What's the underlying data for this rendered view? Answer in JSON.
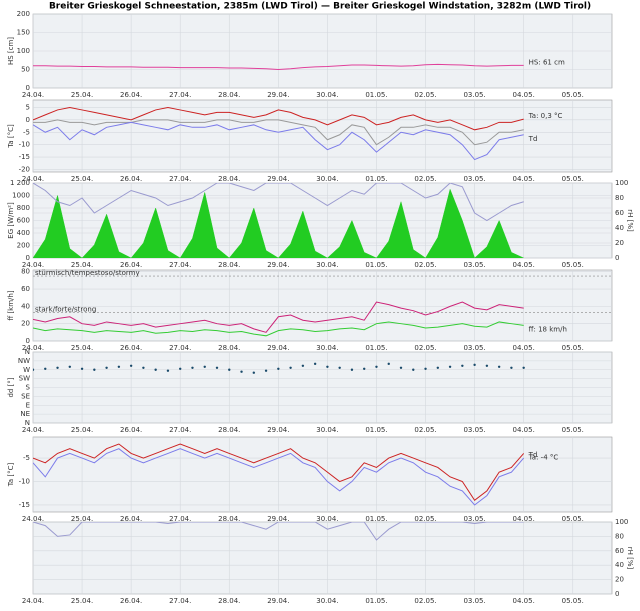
{
  "title": "Breiter Grieskogel Schneestation, 2385m (LWD Tirol) — Breiter Grieskogel Windstation, 3282m (LWD Tirol)",
  "time_axis": {
    "xlim": [
      0,
      11.8
    ],
    "xticks": [
      {
        "value": 0,
        "label": "24.04."
      },
      {
        "value": 1,
        "label": "25.04."
      },
      {
        "value": 2,
        "label": "26.04."
      },
      {
        "value": 3,
        "label": "27.04."
      },
      {
        "value": 4,
        "label": "28.04."
      },
      {
        "value": 5,
        "label": "29.04."
      },
      {
        "value": 6,
        "label": "30.04."
      },
      {
        "value": 7,
        "label": "01.05."
      },
      {
        "value": 8,
        "label": "02.05."
      },
      {
        "value": 9,
        "label": "03.05."
      },
      {
        "value": 10,
        "label": "04.05."
      },
      {
        "value": 11,
        "label": "05.05."
      }
    ],
    "x": [
      0,
      0.25,
      0.5,
      0.75,
      1,
      1.25,
      1.5,
      1.75,
      2,
      2.25,
      2.5,
      2.75,
      3,
      3.25,
      3.5,
      3.75,
      4,
      4.25,
      4.5,
      4.75,
      5,
      5.25,
      5.5,
      5.75,
      6,
      6.25,
      6.5,
      6.75,
      7,
      7.25,
      7.5,
      7.75,
      8,
      8.25,
      8.5,
      8.75,
      9,
      9.25,
      9.5,
      9.75,
      10
    ]
  },
  "chart_data": [
    {
      "type": "line",
      "ylabel": "HS [cm]",
      "ylabel_color": "#d63384",
      "ylim": [
        0,
        200
      ],
      "yticks": [
        0,
        50,
        100,
        150,
        200
      ],
      "grid": true,
      "series": [
        {
          "name": "HS: 61 cm",
          "color": "#e0409a",
          "kind": "line",
          "values": [
            60,
            60,
            59,
            59,
            58,
            58,
            57,
            57,
            57,
            56,
            56,
            56,
            55,
            55,
            55,
            55,
            54,
            54,
            53,
            52,
            50,
            52,
            55,
            57,
            58,
            60,
            62,
            62,
            61,
            60,
            59,
            60,
            63,
            64,
            63,
            62,
            60,
            59,
            60,
            61,
            61
          ]
        }
      ]
    },
    {
      "type": "line",
      "ylabel": "Ta [°C]",
      "ylabel_color": "#c0392b",
      "ylim": [
        -21,
        8
      ],
      "yticks": [
        5,
        0,
        -5,
        -10,
        -15,
        -20
      ],
      "grid": true,
      "series": [
        {
          "color": "#999999",
          "kind": "line",
          "values": [
            -1,
            -1,
            0,
            -1,
            -1,
            -2,
            -1,
            -1,
            -1,
            0,
            0,
            0,
            -1,
            -1,
            -1,
            0,
            0,
            -1,
            -1,
            0,
            0,
            -1,
            -2,
            -3,
            -8,
            -6,
            -2,
            -3,
            -10,
            -7,
            -3,
            -3,
            -2,
            -3,
            -3,
            -5,
            -10,
            -9,
            -5,
            -5,
            -4
          ]
        },
        {
          "name": "Td",
          "color": "#7b7bea",
          "kind": "line",
          "values": [
            -2,
            -5,
            -3,
            -8,
            -4,
            -6,
            -3,
            -2,
            -1,
            -2,
            -3,
            -4,
            -2,
            -3,
            -3,
            -2,
            -4,
            -3,
            -2,
            -4,
            -5,
            -4,
            -3,
            -8,
            -12,
            -10,
            -5,
            -8,
            -13,
            -9,
            -5,
            -6,
            -4,
            -5,
            -6,
            -10,
            -16,
            -14,
            -8,
            -7,
            -6
          ]
        },
        {
          "name": "Ta: 0,3 °C",
          "color": "#cc2222",
          "kind": "line",
          "values": [
            0,
            2,
            4,
            5,
            4,
            3,
            2,
            1,
            0,
            2,
            4,
            5,
            4,
            3,
            2,
            3,
            3,
            2,
            1,
            2,
            4,
            3,
            1,
            0,
            -2,
            0,
            2,
            1,
            -2,
            -1,
            1,
            2,
            0,
            -1,
            0,
            -2,
            -4,
            -3,
            -1,
            -1,
            0.3
          ]
        }
      ]
    },
    {
      "type": "combo",
      "ylabel": "EG [W/m²]",
      "ylabel_color": "#2e9e2e",
      "y2label": "rH [%]",
      "y2label_color": "#9a9acf",
      "ylim": [
        0,
        1200
      ],
      "yticks": [
        0,
        200,
        400,
        600,
        800,
        1000,
        {
          "value": 1200,
          "label": "1 200"
        }
      ],
      "y2lim": [
        0,
        100
      ],
      "y2ticks": [
        0,
        20,
        40,
        60,
        80,
        100
      ],
      "grid": true,
      "series": [
        {
          "color": "#22cc22",
          "kind": "area",
          "values": [
            0,
            300,
            1000,
            150,
            0,
            210,
            700,
            100,
            0,
            240,
            800,
            120,
            0,
            315,
            1050,
            160,
            0,
            240,
            800,
            120,
            0,
            225,
            750,
            110,
            0,
            180,
            600,
            90,
            0,
            270,
            900,
            135,
            0,
            330,
            1100,
            600,
            0,
            180,
            600,
            90,
            0
          ]
        },
        {
          "color": "#9a9acf",
          "kind": "line",
          "axis": "y2",
          "values": [
            100,
            90,
            75,
            70,
            80,
            60,
            70,
            80,
            90,
            85,
            80,
            70,
            75,
            80,
            90,
            100,
            100,
            95,
            90,
            100,
            100,
            100,
            90,
            80,
            70,
            80,
            90,
            85,
            100,
            100,
            100,
            90,
            80,
            85,
            100,
            95,
            60,
            50,
            60,
            70,
            75
          ]
        }
      ]
    },
    {
      "type": "line",
      "ylabel": "ff [km/h]",
      "ylabel_color": "#c0392b",
      "ylim": [
        0,
        82
      ],
      "yticks": [
        0,
        20,
        40,
        60,
        80
      ],
      "grid": true,
      "thresholds": [
        {
          "label": "stürmisch/tempestoso/stormy",
          "value": 75
        },
        {
          "label": "stark/forte/strong",
          "value": 33
        }
      ],
      "series": [
        {
          "color": "#cc2277",
          "kind": "line",
          "values": [
            25,
            22,
            26,
            28,
            20,
            18,
            22,
            20,
            18,
            20,
            16,
            18,
            20,
            22,
            24,
            20,
            18,
            20,
            14,
            10,
            28,
            30,
            24,
            22,
            24,
            26,
            28,
            24,
            45,
            42,
            38,
            35,
            30,
            34,
            40,
            45,
            38,
            36,
            42,
            40,
            38
          ]
        },
        {
          "name": "ff: 18 km/h",
          "color": "#33cc33",
          "kind": "line",
          "values": [
            15,
            12,
            14,
            13,
            12,
            10,
            12,
            11,
            10,
            12,
            9,
            10,
            12,
            11,
            13,
            12,
            10,
            11,
            8,
            6,
            12,
            14,
            13,
            11,
            12,
            14,
            15,
            13,
            20,
            22,
            20,
            18,
            15,
            16,
            18,
            20,
            17,
            16,
            22,
            20,
            18
          ]
        }
      ]
    },
    {
      "type": "scatter",
      "ylabel": "dd [°]",
      "ylabel_color": "#1a4a6a",
      "ylim": [
        0,
        360
      ],
      "yticks": [
        {
          "value": 360,
          "label": "N"
        },
        {
          "value": 315,
          "label": "NW"
        },
        {
          "value": 270,
          "label": "W"
        },
        {
          "value": 225,
          "label": "SW"
        },
        {
          "value": 180,
          "label": "S"
        },
        {
          "value": 135,
          "label": "SE"
        },
        {
          "value": 90,
          "label": "E"
        },
        {
          "value": 45,
          "label": "NE"
        },
        {
          "value": 0,
          "label": "N"
        }
      ],
      "grid": true,
      "series": [
        {
          "color": "#1a4a6a",
          "kind": "dots",
          "values": [
            270,
            275,
            280,
            285,
            275,
            270,
            280,
            285,
            290,
            280,
            270,
            265,
            275,
            280,
            285,
            280,
            270,
            260,
            255,
            265,
            275,
            280,
            290,
            300,
            285,
            280,
            270,
            275,
            285,
            300,
            280,
            270,
            275,
            280,
            285,
            290,
            295,
            290,
            285,
            280,
            280
          ]
        }
      ]
    },
    {
      "type": "line",
      "ylabel": "Ta [°C]",
      "ylabel_color": "#c0392b",
      "ylim": [
        -16.5,
        -0.5
      ],
      "yticks": [
        -5,
        -10,
        -15
      ],
      "grid": true,
      "series": [
        {
          "name": "Td",
          "color": "#7b7bea",
          "kind": "line",
          "values": [
            -6,
            -9,
            -5,
            -4,
            -5,
            -6,
            -4,
            -3,
            -5,
            -6,
            -5,
            -4,
            -3,
            -4,
            -5,
            -4,
            -5,
            -6,
            -7,
            -6,
            -5,
            -4,
            -6,
            -7,
            -10,
            -12,
            -10,
            -7,
            -8,
            -6,
            -5,
            -6,
            -8,
            -9,
            -11,
            -12,
            -15,
            -13,
            -9,
            -8,
            -5
          ]
        },
        {
          "name": "Ta: -4 °C",
          "color": "#cc2222",
          "kind": "line",
          "values": [
            -5,
            -6,
            -4,
            -3,
            -4,
            -5,
            -3,
            -2,
            -4,
            -5,
            -4,
            -3,
            -2,
            -3,
            -4,
            -3,
            -4,
            -5,
            -6,
            -5,
            -4,
            -3,
            -5,
            -6,
            -8,
            -10,
            -9,
            -6,
            -7,
            -5,
            -4,
            -5,
            -6,
            -7,
            -9,
            -10,
            -14,
            -12,
            -8,
            -7,
            -4
          ]
        }
      ]
    },
    {
      "type": "line",
      "y2label": "rH [%]",
      "y2label_color": "#9a9acf",
      "y2lim": [
        0,
        100
      ],
      "y2ticks": [
        0,
        20,
        40,
        60,
        80,
        100
      ],
      "grid": true,
      "series": [
        {
          "color": "#9a9acf",
          "kind": "line",
          "axis": "y2",
          "values": [
            100,
            95,
            80,
            82,
            100,
            100,
            100,
            100,
            100,
            100,
            100,
            98,
            100,
            100,
            100,
            100,
            100,
            100,
            95,
            90,
            100,
            100,
            100,
            100,
            90,
            95,
            100,
            100,
            75,
            90,
            100,
            100,
            100,
            100,
            100,
            100,
            98,
            100,
            100,
            100,
            100
          ]
        }
      ]
    }
  ]
}
